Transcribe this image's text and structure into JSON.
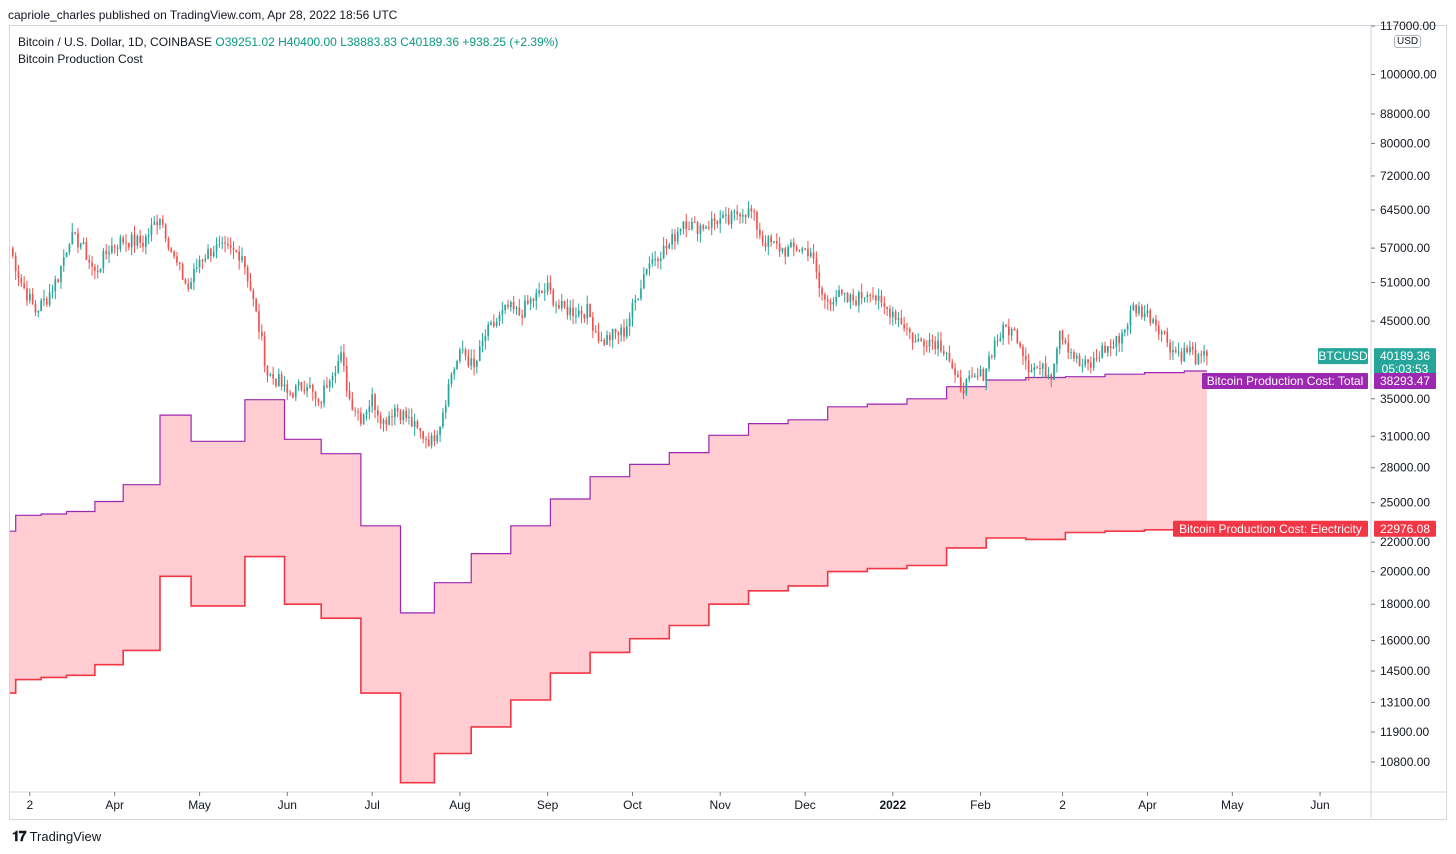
{
  "header": {
    "published_text": "capriole_charles published on TradingView.com, Apr 28, 2022 18:56 UTC"
  },
  "legend": {
    "symbol_line": "Bitcoin / U.S. Dollar, 1D, COINBASE",
    "open": "O39251.02",
    "high": "H40400.00",
    "low": "L38883.83",
    "close": "C40189.36",
    "change": "+938.25 (+2.39%)",
    "indicator": "Bitcoin Production Cost"
  },
  "axis": {
    "currency": "USD"
  },
  "footer": {
    "brand": "TradingView"
  },
  "colors": {
    "up": "#26a69a",
    "down": "#ef5350",
    "total": "#9c27b0",
    "electricity": "#f23645",
    "fill": "#ffcdd2",
    "grid_border": "#d1d4dc",
    "text": "#131722"
  },
  "chart_data": {
    "type": "candlestick",
    "title": "Bitcoin / U.S. Dollar, 1D, COINBASE",
    "y_scale": "log",
    "ylim": [
      9800,
      117000
    ],
    "y_ticks": [
      117000,
      100000,
      88000,
      80000,
      72000,
      64500,
      57000,
      51000,
      45000,
      35000,
      31000,
      28000,
      25000,
      22000,
      20000,
      18000,
      16000,
      14500,
      13100,
      11900,
      10800
    ],
    "y_tick_labels": [
      "117000.00",
      "100000.00",
      "88000.00",
      "80000.00",
      "72000.00",
      "64500.00",
      "57000.00",
      "51000.00",
      "45000.00",
      "35000.00",
      "31000.00",
      "28000.00",
      "25000.00",
      "22000.00",
      "20000.00",
      "18000.00",
      "16000.00",
      "14500.00",
      "13100.00",
      "11900.00",
      "10800.00"
    ],
    "x_start_day": 0,
    "x_end_day": 481,
    "x_ticks": [
      {
        "label": "2",
        "day": 7
      },
      {
        "label": "Apr",
        "day": 37
      },
      {
        "label": "May",
        "day": 67
      },
      {
        "label": "Jun",
        "day": 98
      },
      {
        "label": "Jul",
        "day": 128
      },
      {
        "label": "Aug",
        "day": 159
      },
      {
        "label": "Sep",
        "day": 190
      },
      {
        "label": "Oct",
        "day": 220
      },
      {
        "label": "Nov",
        "day": 251
      },
      {
        "label": "Dec",
        "day": 281
      },
      {
        "label": "2022",
        "day": 312,
        "bold": true
      },
      {
        "label": "Feb",
        "day": 343
      },
      {
        "label": "2",
        "day": 372
      },
      {
        "label": "Apr",
        "day": 402
      },
      {
        "label": "May",
        "day": 432
      },
      {
        "label": "Jun",
        "day": 463
      }
    ],
    "price_keypoints": [
      [
        0,
        57000
      ],
      [
        4,
        51000
      ],
      [
        9,
        46500
      ],
      [
        13,
        48500
      ],
      [
        17,
        52000
      ],
      [
        21,
        59000
      ],
      [
        25,
        58000
      ],
      [
        30,
        52500
      ],
      [
        35,
        57000
      ],
      [
        40,
        58500
      ],
      [
        47,
        58000
      ],
      [
        53,
        63500
      ],
      [
        58,
        55000
      ],
      [
        63,
        50000
      ],
      [
        67,
        55000
      ],
      [
        72,
        57000
      ],
      [
        77,
        56500
      ],
      [
        82,
        56000
      ],
      [
        85,
        50000
      ],
      [
        88,
        44000
      ],
      [
        91,
        38000
      ],
      [
        95,
        37000
      ],
      [
        98,
        35500
      ],
      [
        101,
        36000
      ],
      [
        105,
        37000
      ],
      [
        109,
        34000
      ],
      [
        113,
        38000
      ],
      [
        117,
        40000
      ],
      [
        120,
        35000
      ],
      [
        124,
        33000
      ],
      [
        128,
        35000
      ],
      [
        132,
        32500
      ],
      [
        136,
        34000
      ],
      [
        140,
        33000
      ],
      [
        144,
        31500
      ],
      [
        149,
        30500
      ],
      [
        152,
        32500
      ],
      [
        156,
        38000
      ],
      [
        160,
        41000
      ],
      [
        164,
        38500
      ],
      [
        168,
        43000
      ],
      [
        172,
        45000
      ],
      [
        176,
        47000
      ],
      [
        180,
        46000
      ],
      [
        184,
        48000
      ],
      [
        190,
        50000
      ],
      [
        194,
        47000
      ],
      [
        199,
        46500
      ],
      [
        204,
        46500
      ],
      [
        209,
        42000
      ],
      [
        213,
        43000
      ],
      [
        217,
        43500
      ],
      [
        221,
        48000
      ],
      [
        225,
        54000
      ],
      [
        229,
        56000
      ],
      [
        233,
        57500
      ],
      [
        238,
        62500
      ],
      [
        242,
        61000
      ],
      [
        246,
        61500
      ],
      [
        250,
        62500
      ],
      [
        254,
        62000
      ],
      [
        258,
        64500
      ],
      [
        262,
        64000
      ],
      [
        266,
        58500
      ],
      [
        270,
        57500
      ],
      [
        274,
        56500
      ],
      [
        278,
        57000
      ],
      [
        283,
        56500
      ],
      [
        286,
        50000
      ],
      [
        288,
        48000
      ],
      [
        292,
        49000
      ],
      [
        296,
        48000
      ],
      [
        300,
        48500
      ],
      [
        304,
        50000
      ],
      [
        308,
        47000
      ],
      [
        312,
        46500
      ],
      [
        316,
        44500
      ],
      [
        320,
        42000
      ],
      [
        324,
        42500
      ],
      [
        328,
        42000
      ],
      [
        331,
        41000
      ],
      [
        334,
        37000
      ],
      [
        337,
        36500
      ],
      [
        340,
        37000
      ],
      [
        344,
        38000
      ],
      [
        348,
        42000
      ],
      [
        352,
        44000
      ],
      [
        356,
        43000
      ],
      [
        360,
        39000
      ],
      [
        364,
        38500
      ],
      [
        368,
        38000
      ],
      [
        371,
        44000
      ],
      [
        374,
        41500
      ],
      [
        378,
        39000
      ],
      [
        382,
        39000
      ],
      [
        386,
        41000
      ],
      [
        390,
        41500
      ],
      [
        394,
        44000
      ],
      [
        397,
        47000
      ],
      [
        400,
        46500
      ],
      [
        404,
        45500
      ],
      [
        408,
        43000
      ],
      [
        411,
        41000
      ],
      [
        414,
        40500
      ],
      [
        417,
        41000
      ],
      [
        420,
        39500
      ],
      [
        423,
        40189
      ]
    ],
    "series": [
      {
        "name": "Bitcoin Production Cost: Total",
        "label_value": "38293.47",
        "steps": [
          [
            0,
            22800
          ],
          [
            2,
            24000
          ],
          [
            11,
            24100
          ],
          [
            20,
            24300
          ],
          [
            30,
            25100
          ],
          [
            40,
            26500
          ],
          [
            53,
            33200
          ],
          [
            64,
            30500
          ],
          [
            83,
            34900
          ],
          [
            97,
            30700
          ],
          [
            110,
            29300
          ],
          [
            124,
            23200
          ],
          [
            138,
            17500
          ],
          [
            150,
            19300
          ],
          [
            163,
            21200
          ],
          [
            177,
            23200
          ],
          [
            191,
            25300
          ],
          [
            205,
            27200
          ],
          [
            219,
            28300
          ],
          [
            233,
            29400
          ],
          [
            247,
            31100
          ],
          [
            261,
            32300
          ],
          [
            275,
            32700
          ],
          [
            289,
            34100
          ],
          [
            303,
            34400
          ],
          [
            317,
            35000
          ],
          [
            331,
            36400
          ],
          [
            345,
            37200
          ],
          [
            359,
            37500
          ],
          [
            373,
            37600
          ],
          [
            387,
            37900
          ],
          [
            401,
            38100
          ],
          [
            415,
            38293
          ],
          [
            423,
            38293
          ]
        ]
      },
      {
        "name": "Bitcoin Production Cost: Electricity",
        "label_value": "22976.08",
        "steps": [
          [
            0,
            13500
          ],
          [
            2,
            14100
          ],
          [
            11,
            14200
          ],
          [
            20,
            14300
          ],
          [
            30,
            14800
          ],
          [
            40,
            15500
          ],
          [
            53,
            19700
          ],
          [
            64,
            17900
          ],
          [
            83,
            21000
          ],
          [
            97,
            18000
          ],
          [
            110,
            17200
          ],
          [
            124,
            13500
          ],
          [
            138,
            10100
          ],
          [
            150,
            11100
          ],
          [
            163,
            12100
          ],
          [
            177,
            13200
          ],
          [
            191,
            14400
          ],
          [
            205,
            15400
          ],
          [
            219,
            16100
          ],
          [
            233,
            16800
          ],
          [
            247,
            18000
          ],
          [
            261,
            18800
          ],
          [
            275,
            19100
          ],
          [
            289,
            20000
          ],
          [
            303,
            20200
          ],
          [
            317,
            20400
          ],
          [
            331,
            21600
          ],
          [
            345,
            22300
          ],
          [
            359,
            22200
          ],
          [
            373,
            22700
          ],
          [
            387,
            22800
          ],
          [
            401,
            22900
          ],
          [
            415,
            22976
          ],
          [
            423,
            22976
          ]
        ]
      }
    ],
    "last_price": {
      "symbol": "BTCUSD",
      "value": "40189.36",
      "countdown": "05:03:53"
    }
  }
}
